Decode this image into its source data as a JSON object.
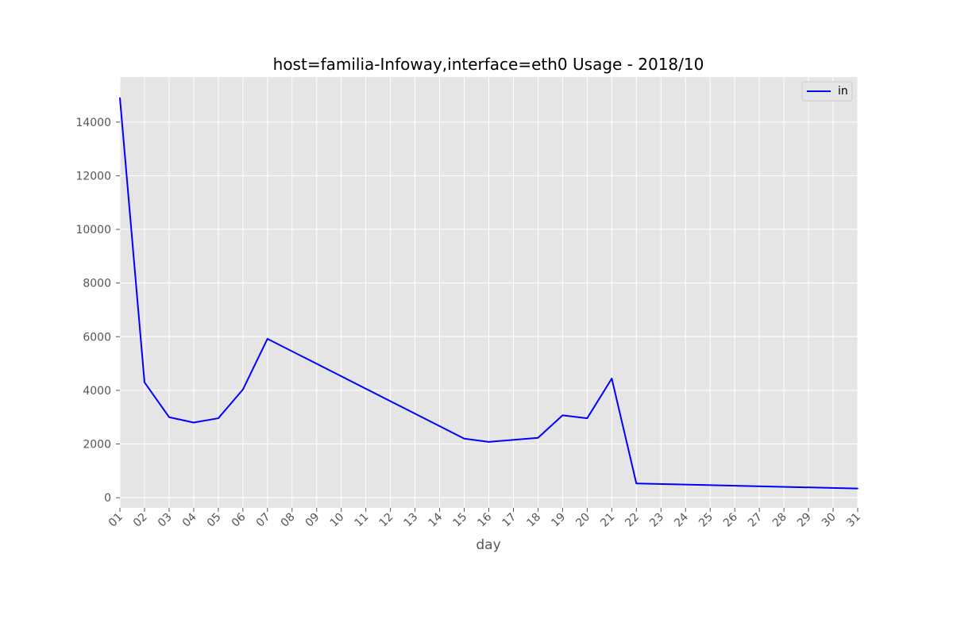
{
  "chart_data": {
    "type": "line",
    "title": "host=familia-Infoway,interface=eth0 Usage - 2018/10",
    "xlabel": "day",
    "ylabel": "",
    "x": [
      "01",
      "02",
      "03",
      "04",
      "05",
      "06",
      "07",
      "08",
      "09",
      "10",
      "11",
      "12",
      "13",
      "14",
      "15",
      "16",
      "17",
      "18",
      "19",
      "20",
      "21",
      "22",
      "23",
      "24",
      "25",
      "26",
      "27",
      "28",
      "29",
      "30",
      "31"
    ],
    "series": [
      {
        "name": "in",
        "color": "#0000ff",
        "points": [
          {
            "x": "01",
            "y": 14900
          },
          {
            "x": "02",
            "y": 4300
          },
          {
            "x": "03",
            "y": 3000
          },
          {
            "x": "04",
            "y": 2800
          },
          {
            "x": "05",
            "y": 2960
          },
          {
            "x": "06",
            "y": 4030
          },
          {
            "x": "07",
            "y": 5920
          },
          {
            "x": "15",
            "y": 2200
          },
          {
            "x": "16",
            "y": 2080
          },
          {
            "x": "18",
            "y": 2230
          },
          {
            "x": "19",
            "y": 3070
          },
          {
            "x": "20",
            "y": 2960
          },
          {
            "x": "21",
            "y": 4440
          },
          {
            "x": "22",
            "y": 530
          },
          {
            "x": "31",
            "y": 340
          }
        ]
      }
    ],
    "yticks": [
      "0",
      "2000",
      "4000",
      "6000",
      "8000",
      "10000",
      "12000",
      "14000"
    ],
    "ytick_values": [
      0,
      2000,
      4000,
      6000,
      8000,
      10000,
      12000,
      14000
    ],
    "ylim": [
      -380,
      15680
    ],
    "grid": true,
    "legend_position": "top-right",
    "background_color": "#e5e5e5",
    "grid_color": "#ffffff"
  }
}
